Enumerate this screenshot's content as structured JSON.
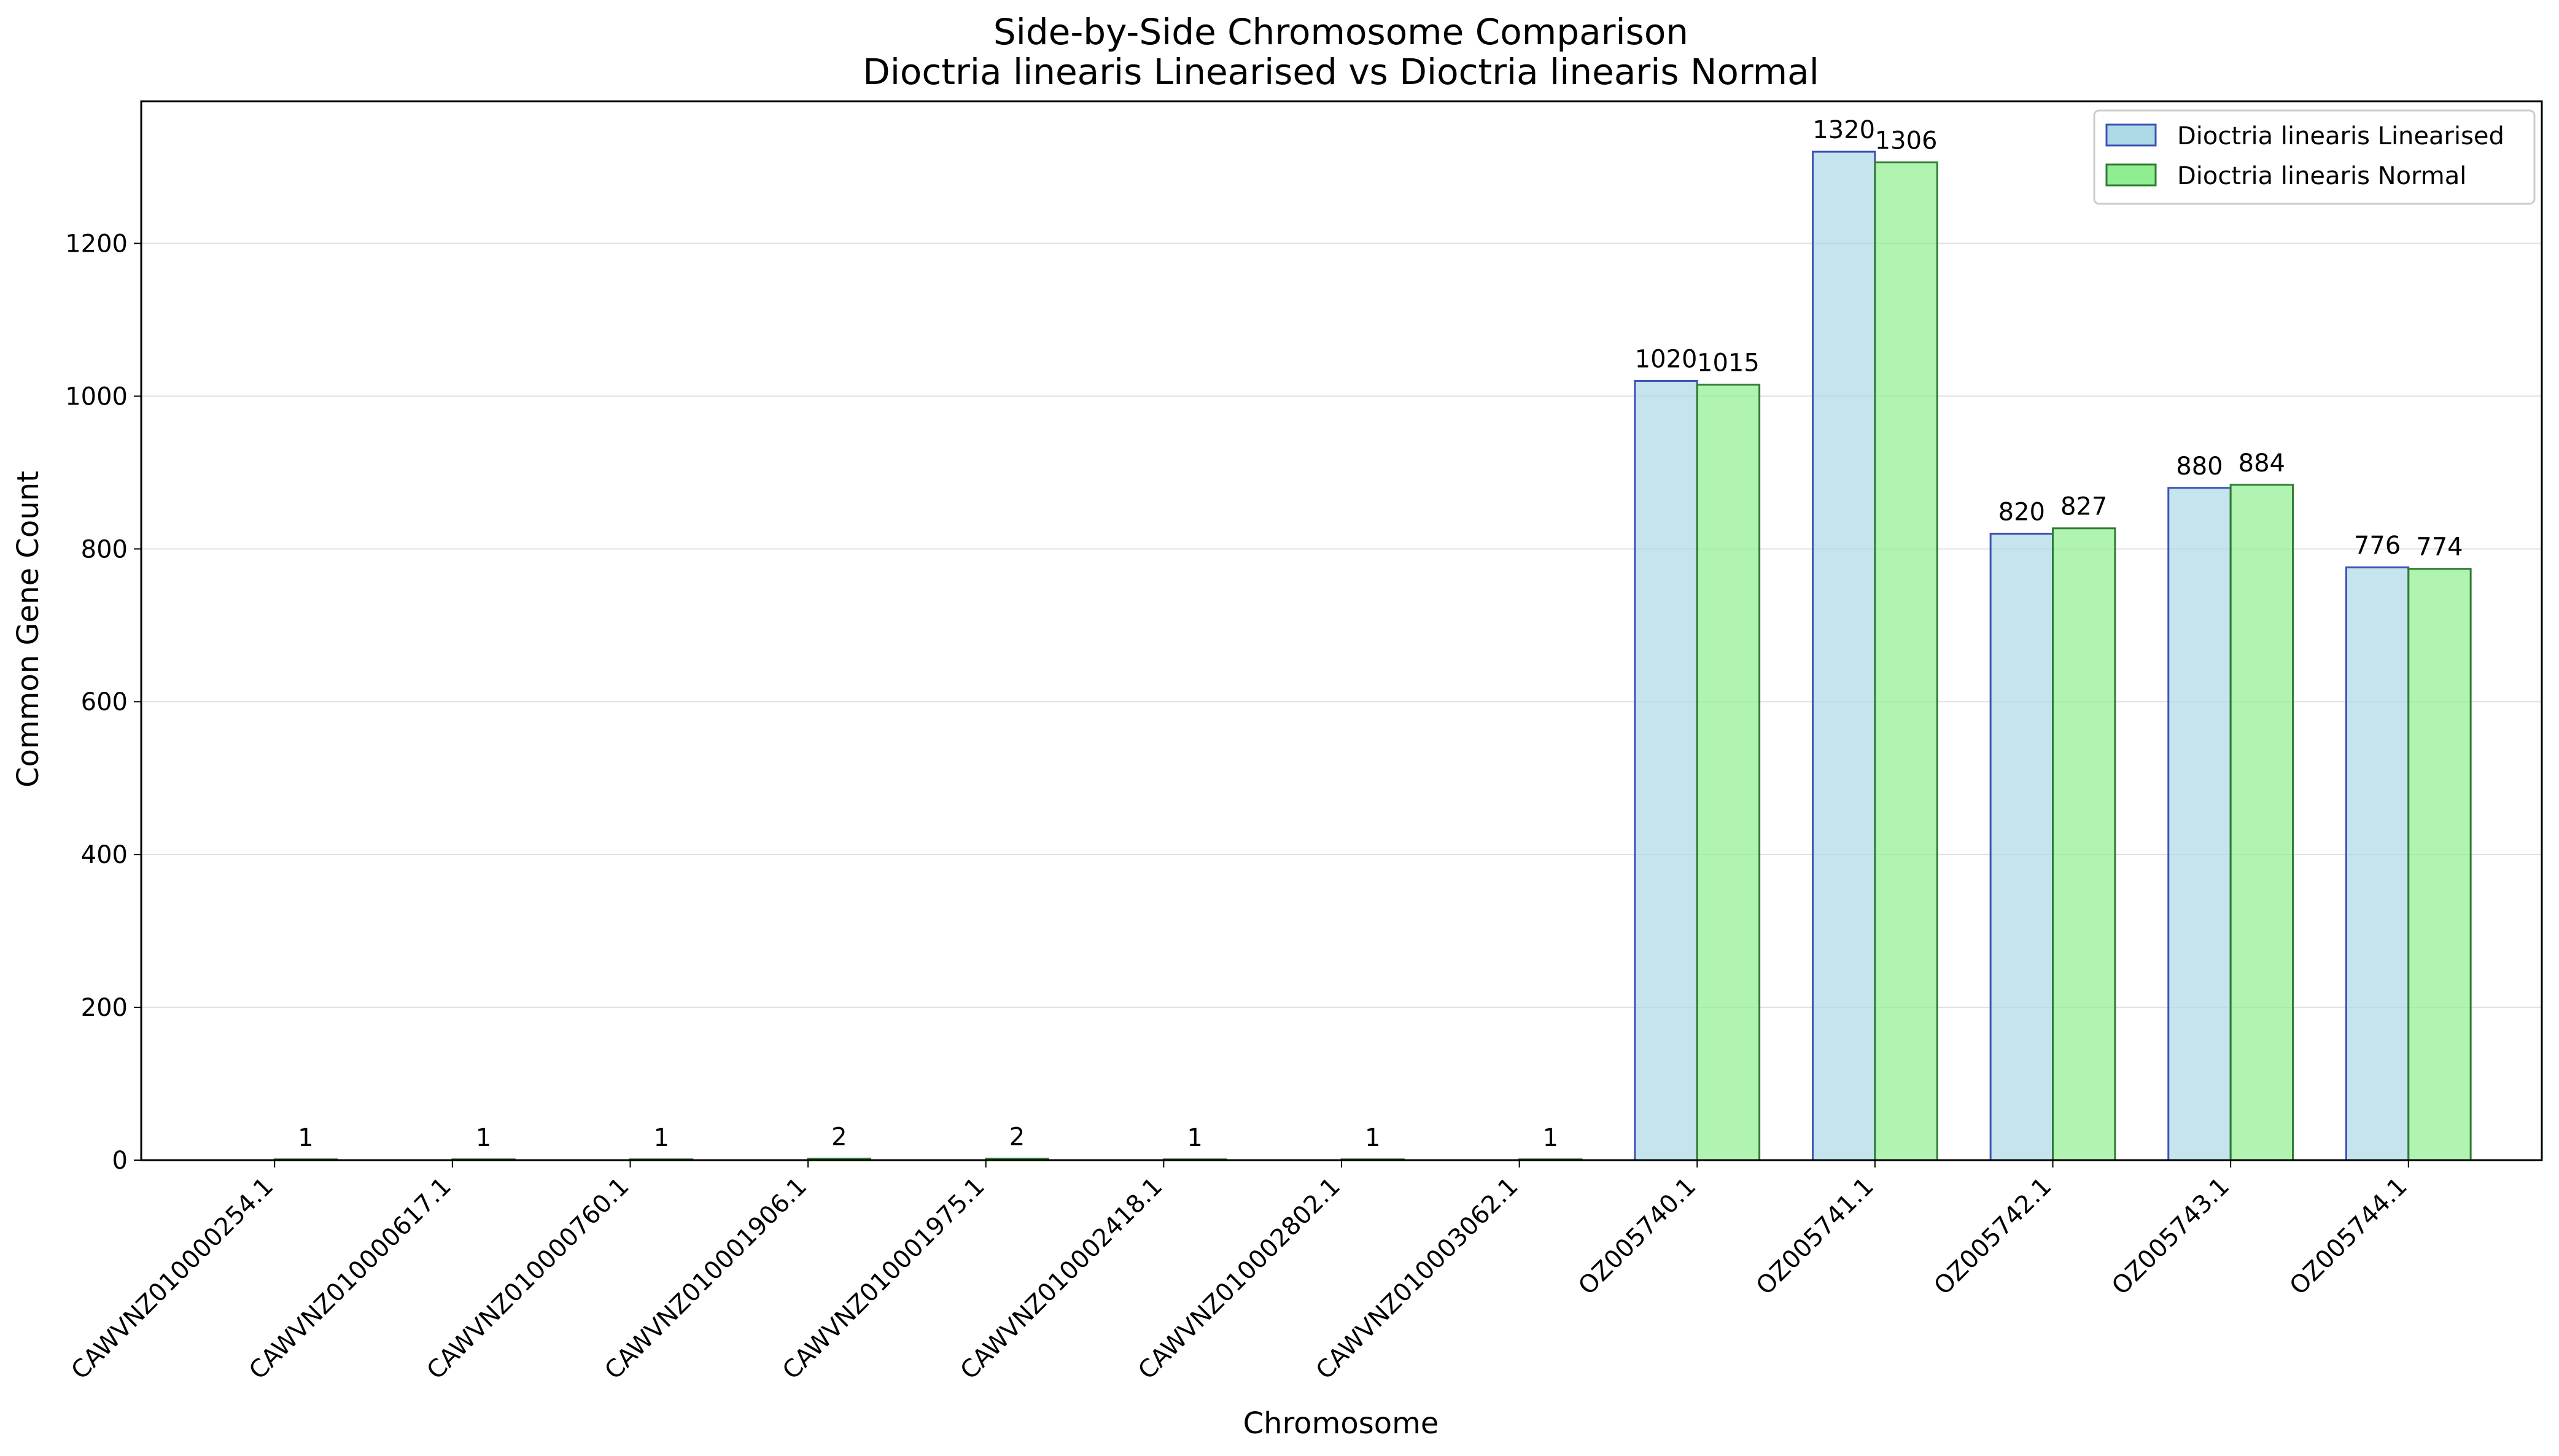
{
  "chart_data": {
    "type": "bar",
    "title": "Side-by-Side Chromosome Comparison",
    "subtitle": "Dioctria linearis Linearised vs Dioctria linearis Normal",
    "xlabel": "Chromosome",
    "ylabel": "Common Gene Count",
    "categories": [
      "CAWVNZ010000254.1",
      "CAWVNZ010000617.1",
      "CAWVNZ010000760.1",
      "CAWVNZ010001906.1",
      "CAWVNZ010001975.1",
      "CAWVNZ010002418.1",
      "CAWVNZ010002802.1",
      "CAWVNZ010003062.1",
      "OZ005740.1",
      "OZ005741.1",
      "OZ005742.1",
      "OZ005743.1",
      "OZ005744.1"
    ],
    "series": [
      {
        "name": "Dioctria linearis Linearised",
        "values": [
          0,
          0,
          0,
          0,
          0,
          0,
          0,
          0,
          1020,
          1320,
          820,
          880,
          776
        ],
        "fill": "#add8e6",
        "edge": "#3f51b5",
        "data_labels": [
          "",
          "",
          "",
          "",
          "",
          "",
          "",
          "",
          "1020",
          "1320",
          "820",
          "880",
          "776"
        ]
      },
      {
        "name": "Dioctria linearis Normal",
        "values": [
          1,
          1,
          1,
          2,
          2,
          1,
          1,
          1,
          1015,
          1306,
          827,
          884,
          774
        ],
        "fill": "#90ee90",
        "edge": "#2e7d32",
        "data_labels": [
          "1",
          "1",
          "1",
          "2",
          "2",
          "1",
          "1",
          "1",
          "1015",
          "1306",
          "827",
          "884",
          "774"
        ]
      }
    ],
    "yticks": [
      0,
      200,
      400,
      600,
      800,
      1000,
      1200
    ],
    "ylim": [
      0,
      1386
    ],
    "grid": "horizontal",
    "legend_position": "top-right"
  }
}
